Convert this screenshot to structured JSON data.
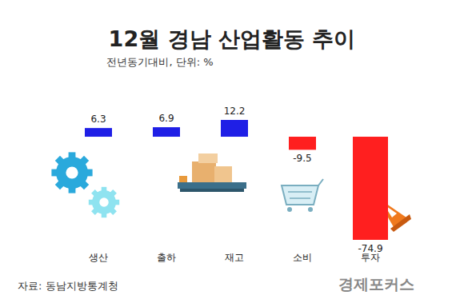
{
  "chart_data": {
    "type": "bar",
    "title": "12월 경남 산업활동 추이",
    "subtitle": "전년동기대비, 단위: %",
    "categories": [
      "생산",
      "출하",
      "재고",
      "소비",
      "투자"
    ],
    "values": [
      6.3,
      6.9,
      12.2,
      -9.5,
      -74.9
    ],
    "colors": [
      "#1f1fe6",
      "#1f1fe6",
      "#1f1fe6",
      "#ff1f1f",
      "#ff1f1f"
    ],
    "ylim": [
      -74.9,
      12.2
    ],
    "data_labels": true,
    "tick_labels": "x",
    "grid": false,
    "source": "자료: 동남지방통계청",
    "watermark": "경제포커스"
  }
}
